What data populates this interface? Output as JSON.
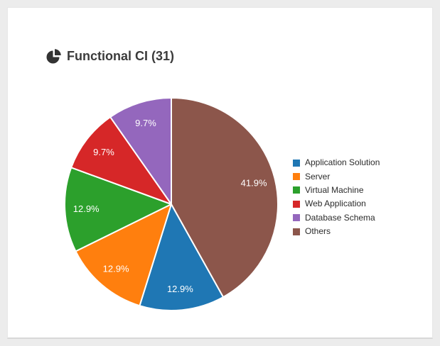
{
  "theme": {
    "page_background": "#ececec",
    "card_background": "#ffffff",
    "title_color": "#3b3b3b",
    "legend_text_color": "#2b2b2b",
    "slice_label_color": "#ffffff",
    "icon_color": "#333333"
  },
  "header": {
    "icon": "pie-chart-icon",
    "title": "Functional CI (31)"
  },
  "chart_data": {
    "type": "pie",
    "title": "Functional CI (31)",
    "total": 31,
    "series": [
      {
        "label": "Application Solution",
        "value": 4,
        "percent": "12.9%",
        "color": "#1f77b4"
      },
      {
        "label": "Server",
        "value": 4,
        "percent": "12.9%",
        "color": "#ff7f0e"
      },
      {
        "label": "Virtual Machine",
        "value": 4,
        "percent": "12.9%",
        "color": "#2ca02c"
      },
      {
        "label": "Web Application",
        "value": 3,
        "percent": "9.7%",
        "color": "#d62728"
      },
      {
        "label": "Database Schema",
        "value": 3,
        "percent": "9.7%",
        "color": "#9467bd"
      },
      {
        "label": "Others",
        "value": 13,
        "percent": "41.9%",
        "color": "#8c564b"
      }
    ],
    "layout": {
      "direction": "clockwise",
      "start_angle_deg": 150.84,
      "label_radius_ratio": 0.8,
      "slice_stroke": "#ffffff",
      "legend_position": "right",
      "legend_marker": "square"
    }
  }
}
